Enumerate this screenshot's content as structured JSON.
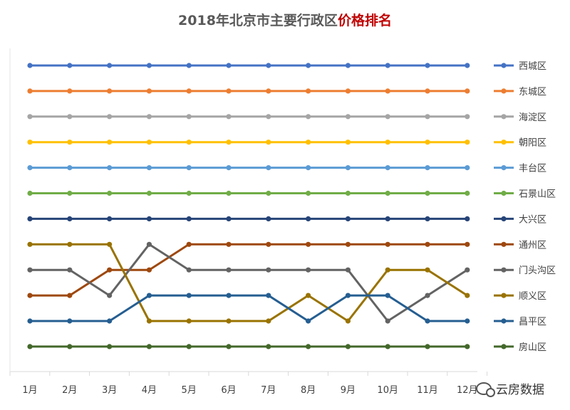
{
  "title_part1": "2018年北京市主要行政区",
  "title_part2": "价格排名",
  "watermark": "云房数据",
  "chart_data": {
    "type": "line",
    "title": "2018年北京市主要行政区价格排名",
    "categories": [
      "1月",
      "2月",
      "3月",
      "4月",
      "5月",
      "6月",
      "7月",
      "8月",
      "9月",
      "10月",
      "11月",
      "12月"
    ],
    "y_meaning": "rank (1 = top)",
    "ylim": [
      1,
      12
    ],
    "y_inverted": true,
    "grid": false,
    "legend_position": "right",
    "series": [
      {
        "name": "西城区",
        "color": "#4472c4",
        "values": [
          1,
          1,
          1,
          1,
          1,
          1,
          1,
          1,
          1,
          1,
          1,
          1
        ]
      },
      {
        "name": "东城区",
        "color": "#ed7d31",
        "values": [
          2,
          2,
          2,
          2,
          2,
          2,
          2,
          2,
          2,
          2,
          2,
          2
        ]
      },
      {
        "name": "海淀区",
        "color": "#a5a5a5",
        "values": [
          3,
          3,
          3,
          3,
          3,
          3,
          3,
          3,
          3,
          3,
          3,
          3
        ]
      },
      {
        "name": "朝阳区",
        "color": "#ffc000",
        "values": [
          4,
          4,
          4,
          4,
          4,
          4,
          4,
          4,
          4,
          4,
          4,
          4
        ]
      },
      {
        "name": "丰台区",
        "color": "#5b9bd5",
        "values": [
          5,
          5,
          5,
          5,
          5,
          5,
          5,
          5,
          5,
          5,
          5,
          5
        ]
      },
      {
        "name": "石景山区",
        "color": "#70ad47",
        "values": [
          6,
          6,
          6,
          6,
          6,
          6,
          6,
          6,
          6,
          6,
          6,
          6
        ]
      },
      {
        "name": "大兴区",
        "color": "#264478",
        "values": [
          7,
          7,
          7,
          7,
          7,
          7,
          7,
          7,
          7,
          7,
          7,
          7
        ]
      },
      {
        "name": "通州区",
        "color": "#9e480e",
        "values": [
          10,
          10,
          9,
          9,
          8,
          8,
          8,
          8,
          8,
          8,
          8,
          8
        ]
      },
      {
        "name": "门头沟区",
        "color": "#636363",
        "values": [
          9,
          9,
          10,
          8,
          9,
          9,
          9,
          9,
          9,
          11,
          10,
          9
        ]
      },
      {
        "name": "顺义区",
        "color": "#997300",
        "values": [
          8,
          8,
          8,
          11,
          11,
          11,
          11,
          10,
          11,
          9,
          9,
          10
        ]
      },
      {
        "name": "昌平区",
        "color": "#255e91",
        "values": [
          11,
          11,
          11,
          10,
          10,
          10,
          10,
          11,
          10,
          10,
          11,
          11
        ]
      },
      {
        "name": "房山区",
        "color": "#43682b",
        "values": [
          12,
          12,
          12,
          12,
          12,
          12,
          12,
          12,
          12,
          12,
          12,
          12
        ]
      }
    ]
  }
}
